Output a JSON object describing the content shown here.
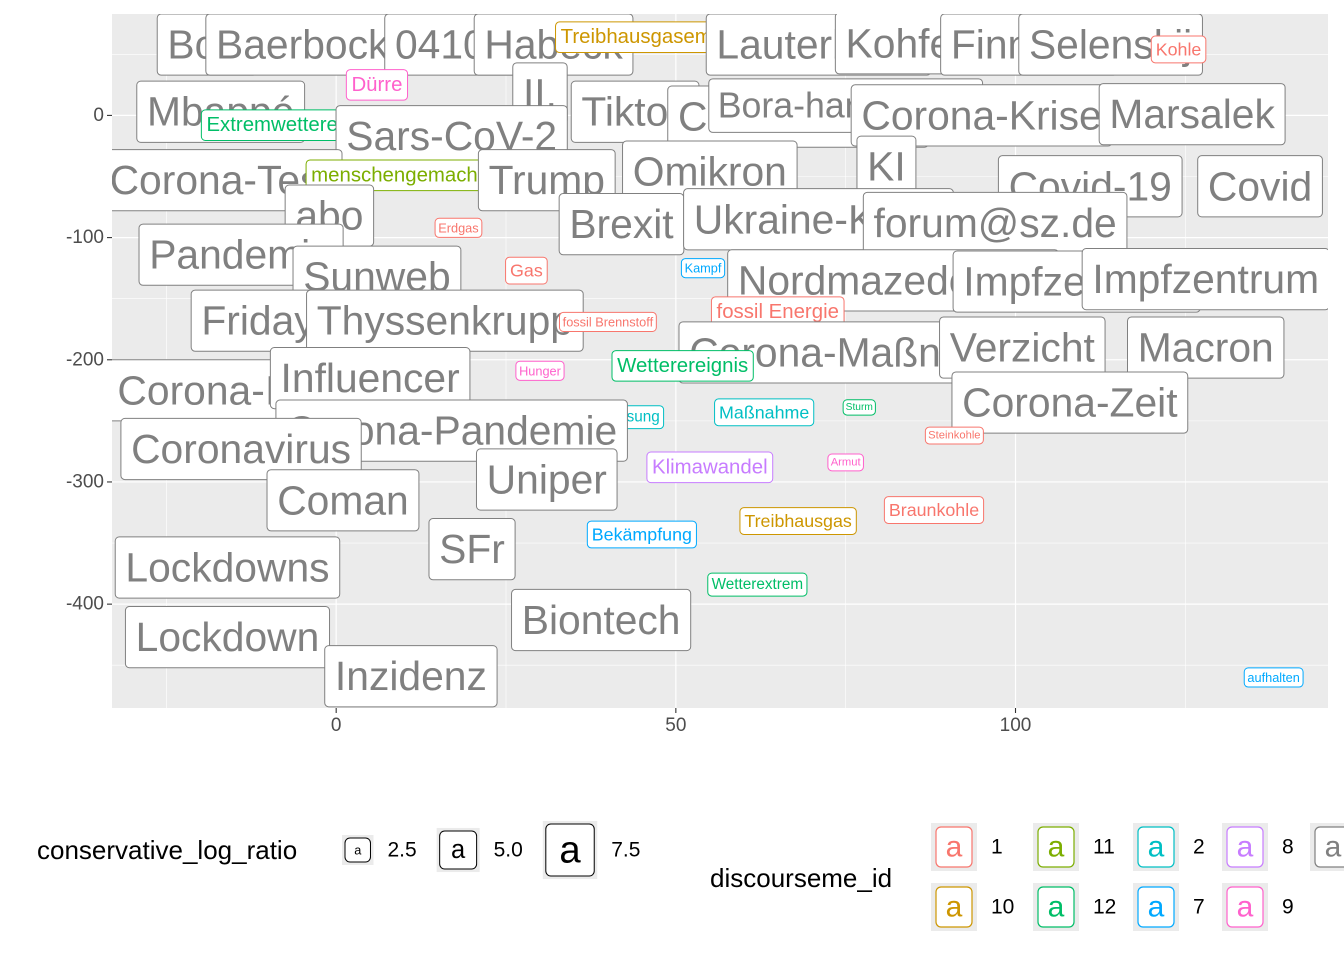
{
  "chart_data": {
    "type": "scatter",
    "title": "",
    "xlabel": "",
    "ylabel": "",
    "xlim": [
      -33,
      146
    ],
    "ylim": [
      -485,
      83
    ],
    "x_ticks": [
      0,
      50,
      100
    ],
    "y_ticks": [
      0,
      -100,
      -200,
      -300,
      -400
    ],
    "x_tick_labels": [
      "0",
      "50",
      "100"
    ],
    "y_tick_labels": [
      "0",
      "-100",
      "-200",
      "-300",
      "-400"
    ],
    "grid": true,
    "legend_placement": "bottom",
    "legends": {
      "size_title": "conservative_log_ratio",
      "size_keys": [
        {
          "label": "2.5",
          "value": 2.5
        },
        {
          "label": "5.0",
          "value": 5.0
        },
        {
          "label": "7.5",
          "value": 7.5
        }
      ],
      "color_title": "discourseme_id",
      "color_keys": [
        {
          "label": "1",
          "color": "#F8766D"
        },
        {
          "label": "11",
          "color": "#7CAE00"
        },
        {
          "label": "2",
          "color": "#00BFC4"
        },
        {
          "label": "8",
          "color": "#C77CFF"
        },
        {
          "label": "",
          "color": "#808080"
        },
        {
          "label": "10",
          "color": "#CD9600"
        },
        {
          "label": "12",
          "color": "#00BE67"
        },
        {
          "label": "7",
          "color": "#00A9FF"
        },
        {
          "label": "9",
          "color": "#FF61CC"
        }
      ],
      "key_glyph": "a"
    },
    "colors": {
      "gray": "#808080",
      "1": "#F8766D",
      "2": "#00BFC4",
      "7": "#00A9FF",
      "8": "#C77CFF",
      "9": "#FF61CC",
      "10": "#CD9600",
      "11": "#7CAE00",
      "12": "#00BE67"
    },
    "points": [
      {
        "label": "Bols",
        "x": -19,
        "y": 58,
        "size": 8.0,
        "group": "gray"
      },
      {
        "label": "Baerbock",
        "x": -5,
        "y": 58,
        "size": 8.0,
        "group": "gray"
      },
      {
        "label": "04107",
        "x": 17,
        "y": 58,
        "size": 8.0,
        "group": "gray"
      },
      {
        "label": "Habeck",
        "x": 32,
        "y": 58,
        "size": 8.0,
        "group": "gray"
      },
      {
        "label": "Treibhausgasemission",
        "x": 48,
        "y": 64,
        "size": 4.0,
        "group": "10"
      },
      {
        "label": "Lauterbach",
        "x": 71,
        "y": 58,
        "size": 8.0,
        "group": "gray"
      },
      {
        "label": "Kohfeldt",
        "x": 86,
        "y": 59,
        "size": 8.0,
        "group": "gray"
      },
      {
        "label": "Finnland",
        "x": 102,
        "y": 58,
        "size": 8.0,
        "group": "gray"
      },
      {
        "label": "Selenskij",
        "x": 114,
        "y": 58,
        "size": 8.0,
        "group": "gray"
      },
      {
        "label": "Kohle",
        "x": 124,
        "y": 54,
        "size": 3.5,
        "group": "1"
      },
      {
        "label": "Dürre",
        "x": 6,
        "y": 25,
        "size": 4.0,
        "group": "9"
      },
      {
        "label": "II.",
        "x": 30,
        "y": 18,
        "size": 8.0,
        "group": "gray"
      },
      {
        "label": "Mbappé",
        "x": -17,
        "y": 3,
        "size": 8.0,
        "group": "gray"
      },
      {
        "label": "Extremwetterereignis",
        "x": -5,
        "y": -8,
        "size": 4.0,
        "group": "12"
      },
      {
        "label": "Tiktok",
        "x": 44,
        "y": 3,
        "size": 8.0,
        "group": "gray"
      },
      {
        "label": "Corona-Krise",
        "x": 68,
        "y": -1,
        "size": 8.0,
        "group": "gray"
      },
      {
        "label": "Bora-hansgrohe",
        "x": 75,
        "y": 8,
        "size": 7.0,
        "group": "gray"
      },
      {
        "label": "Corona-Krise",
        "x": 95,
        "y": 0,
        "size": 8.0,
        "group": "gray"
      },
      {
        "label": "Marsalek",
        "x": 126,
        "y": 1,
        "size": 8.0,
        "group": "gray"
      },
      {
        "label": "Sars-CoV-2",
        "x": 17,
        "y": -17,
        "size": 8.0,
        "group": "gray"
      },
      {
        "label": "Corona-Test",
        "x": -17,
        "y": -53,
        "size": 8.0,
        "group": "gray"
      },
      {
        "label": "menschengemacht",
        "x": 9,
        "y": -49,
        "size": 4.0,
        "group": "11"
      },
      {
        "label": "Trump",
        "x": 31,
        "y": -53,
        "size": 8.0,
        "group": "gray"
      },
      {
        "label": "Omikron",
        "x": 55,
        "y": -46,
        "size": 8.0,
        "group": "gray"
      },
      {
        "label": "KI",
        "x": 81,
        "y": -42,
        "size": 8.0,
        "group": "gray"
      },
      {
        "label": "Covid-19",
        "x": 111,
        "y": -58,
        "size": 8.0,
        "group": "gray"
      },
      {
        "label": "Covid",
        "x": 136,
        "y": -58,
        "size": 8.0,
        "group": "gray"
      },
      {
        "label": "abo",
        "x": -1,
        "y": -82,
        "size": 8.0,
        "group": "gray"
      },
      {
        "label": "Brexit",
        "x": 42,
        "y": -89,
        "size": 8.0,
        "group": "gray"
      },
      {
        "label": "Erdgas",
        "x": 18,
        "y": -92,
        "size": 2.5,
        "group": "1"
      },
      {
        "label": "Ukraine-Krieg",
        "x": 71,
        "y": -85,
        "size": 8.0,
        "group": "gray"
      },
      {
        "label": "forum@sz.de",
        "x": 97,
        "y": -88,
        "size": 8.0,
        "group": "gray"
      },
      {
        "label": "Pandemie",
        "x": -14,
        "y": -114,
        "size": 8.0,
        "group": "gray"
      },
      {
        "label": "Sunweb",
        "x": 6,
        "y": -132,
        "size": 8.0,
        "group": "gray"
      },
      {
        "label": "Gas",
        "x": 28,
        "y": -127,
        "size": 3.5,
        "group": "1"
      },
      {
        "label": "Kampf",
        "x": 54,
        "y": -125,
        "size": 2.5,
        "group": "7"
      },
      {
        "label": "Nordmazedonien",
        "x": 82,
        "y": -135,
        "size": 8.0,
        "group": "gray"
      },
      {
        "label": "Impfzentrum",
        "x": 109,
        "y": -136,
        "size": 8.0,
        "group": "gray"
      },
      {
        "label": "Impfzentrum",
        "x": 128,
        "y": -134,
        "size": 8.0,
        "group": "gray"
      },
      {
        "label": "Fridays",
        "x": -10,
        "y": -168,
        "size": 8.0,
        "group": "gray"
      },
      {
        "label": "Thyssenkrupp",
        "x": 16,
        "y": -168,
        "size": 8.0,
        "group": "gray"
      },
      {
        "label": "fossil Brennstoff",
        "x": 40,
        "y": -169,
        "size": 2.5,
        "group": "1"
      },
      {
        "label": "fossil Energie",
        "x": 65,
        "y": -161,
        "size": 4.0,
        "group": "1"
      },
      {
        "label": "Corona-Maßnahme",
        "x": 78,
        "y": -194,
        "size": 8.0,
        "group": "gray"
      },
      {
        "label": "Verzicht",
        "x": 101,
        "y": -190,
        "size": 8.0,
        "group": "gray"
      },
      {
        "label": "Macron",
        "x": 128,
        "y": -190,
        "size": 8.0,
        "group": "gray"
      },
      {
        "label": "Corona-Infektion",
        "x": -10,
        "y": -225,
        "size": 8.0,
        "group": "gray"
      },
      {
        "label": "Influencer",
        "x": 5,
        "y": -215,
        "size": 8.0,
        "group": "gray"
      },
      {
        "label": "Hunger",
        "x": 30,
        "y": -209,
        "size": 2.5,
        "group": "9"
      },
      {
        "label": "Wetterereignis",
        "x": 51,
        "y": -205,
        "size": 4.0,
        "group": "12"
      },
      {
        "label": "Anpassung",
        "x": 42,
        "y": -247,
        "size": 3.0,
        "group": "2"
      },
      {
        "label": "Maßnahme",
        "x": 63,
        "y": -243,
        "size": 3.5,
        "group": "2"
      },
      {
        "label": "Sturm",
        "x": 77,
        "y": -239,
        "size": 2.0,
        "group": "12"
      },
      {
        "label": "Corona-Zeit",
        "x": 108,
        "y": -235,
        "size": 8.0,
        "group": "gray"
      },
      {
        "label": "Corona-Pandemie",
        "x": 17,
        "y": -258,
        "size": 8.0,
        "group": "gray"
      },
      {
        "label": "Steinkohle",
        "x": 91,
        "y": -262,
        "size": 2.2,
        "group": "1"
      },
      {
        "label": "Coronavirus",
        "x": -14,
        "y": -273,
        "size": 8.0,
        "group": "gray"
      },
      {
        "label": "Armut",
        "x": 75,
        "y": -284,
        "size": 2.2,
        "group": "9"
      },
      {
        "label": "Klimawandel",
        "x": 55,
        "y": -288,
        "size": 4.0,
        "group": "8"
      },
      {
        "label": "Uniper",
        "x": 31,
        "y": -298,
        "size": 8.0,
        "group": "gray"
      },
      {
        "label": "Coman",
        "x": 1,
        "y": -315,
        "size": 8.0,
        "group": "gray"
      },
      {
        "label": "Braunkohle",
        "x": 88,
        "y": -323,
        "size": 3.5,
        "group": "1"
      },
      {
        "label": "Treibhausgas",
        "x": 68,
        "y": -332,
        "size": 3.5,
        "group": "10"
      },
      {
        "label": "Bekämpfung",
        "x": 45,
        "y": -343,
        "size": 3.5,
        "group": "7"
      },
      {
        "label": "SFr",
        "x": 20,
        "y": -355,
        "size": 8.0,
        "group": "gray"
      },
      {
        "label": "Lockdowns",
        "x": -16,
        "y": -370,
        "size": 8.0,
        "group": "gray"
      },
      {
        "label": "Wetterextrem",
        "x": 62,
        "y": -384,
        "size": 3.0,
        "group": "12"
      },
      {
        "label": "Biontech",
        "x": 39,
        "y": -413,
        "size": 8.0,
        "group": "gray"
      },
      {
        "label": "Lockdown",
        "x": -16,
        "y": -427,
        "size": 8.0,
        "group": "gray"
      },
      {
        "label": "Inzidenz",
        "x": 11,
        "y": -459,
        "size": 8.0,
        "group": "gray"
      },
      {
        "label": "aufhalten",
        "x": 138,
        "y": -460,
        "size": 2.5,
        "group": "7"
      }
    ]
  }
}
